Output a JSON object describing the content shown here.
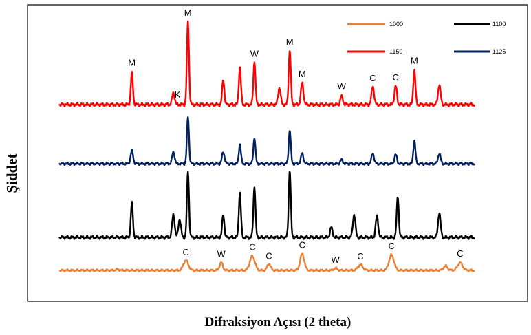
{
  "chart_data": {
    "type": "line",
    "xlabel": "Difraksiyon Açısı (2 theta)",
    "ylabel": "Şiddet",
    "x_tick_labels": false,
    "y_tick_labels": false,
    "grid": false,
    "legend_position": "top-right",
    "x": [
      0,
      0.02,
      0.04,
      0.06,
      0.08,
      0.1,
      0.12,
      0.14,
      0.16,
      0.18,
      0.2,
      0.22,
      0.24,
      0.26,
      0.28,
      0.3,
      0.32,
      0.34,
      0.36,
      0.38,
      0.4,
      0.42,
      0.44,
      0.46,
      0.48,
      0.5,
      0.52,
      0.54,
      0.56,
      0.58,
      0.6,
      0.62,
      0.64,
      0.66,
      0.68,
      0.7,
      0.72,
      0.74,
      0.76,
      0.78,
      0.8,
      0.82,
      0.84,
      0.86,
      0.88,
      0.9,
      0.92,
      0.94,
      0.96,
      0.98,
      1.0
    ],
    "series": [
      {
        "name": "1000",
        "color": "#ED7D31",
        "peaks": [
          {
            "x": 0.14,
            "h": 0.02,
            "w": 0.004
          },
          {
            "x": 0.305,
            "h": 0.18,
            "w": 0.006
          },
          {
            "x": 0.39,
            "h": 0.14,
            "w": 0.004
          },
          {
            "x": 0.465,
            "h": 0.26,
            "w": 0.006
          },
          {
            "x": 0.505,
            "h": 0.12,
            "w": 0.004
          },
          {
            "x": 0.585,
            "h": 0.3,
            "w": 0.005
          },
          {
            "x": 0.665,
            "h": 0.04,
            "w": 0.004
          },
          {
            "x": 0.725,
            "h": 0.1,
            "w": 0.006
          },
          {
            "x": 0.8,
            "h": 0.28,
            "w": 0.006
          },
          {
            "x": 0.93,
            "h": 0.08,
            "w": 0.005
          },
          {
            "x": 0.965,
            "h": 0.14,
            "w": 0.006
          }
        ]
      },
      {
        "name": "1100",
        "color": "#000000",
        "peaks": [
          {
            "x": 0.175,
            "h": 0.42,
            "w": 0.0025
          },
          {
            "x": 0.275,
            "h": 0.28,
            "w": 0.003
          },
          {
            "x": 0.29,
            "h": 0.22,
            "w": 0.003
          },
          {
            "x": 0.31,
            "h": 0.8,
            "w": 0.0025
          },
          {
            "x": 0.395,
            "h": 0.28,
            "w": 0.0025
          },
          {
            "x": 0.435,
            "h": 0.55,
            "w": 0.0025
          },
          {
            "x": 0.47,
            "h": 0.62,
            "w": 0.0025
          },
          {
            "x": 0.555,
            "h": 0.82,
            "w": 0.0025
          },
          {
            "x": 0.655,
            "h": 0.12,
            "w": 0.003
          },
          {
            "x": 0.71,
            "h": 0.28,
            "w": 0.003
          },
          {
            "x": 0.765,
            "h": 0.26,
            "w": 0.003
          },
          {
            "x": 0.815,
            "h": 0.5,
            "w": 0.0025
          },
          {
            "x": 0.915,
            "h": 0.3,
            "w": 0.003
          }
        ]
      },
      {
        "name": "1150",
        "color": "#FF0000",
        "peaks": [
          {
            "x": 0.175,
            "h": 0.38,
            "w": 0.0025
          },
          {
            "x": 0.275,
            "h": 0.14,
            "w": 0.003
          },
          {
            "x": 0.31,
            "h": 1.0,
            "w": 0.0025
          },
          {
            "x": 0.395,
            "h": 0.3,
            "w": 0.0025
          },
          {
            "x": 0.435,
            "h": 0.45,
            "w": 0.0025
          },
          {
            "x": 0.47,
            "h": 0.52,
            "w": 0.0025
          },
          {
            "x": 0.53,
            "h": 0.2,
            "w": 0.003
          },
          {
            "x": 0.555,
            "h": 0.66,
            "w": 0.0025
          },
          {
            "x": 0.585,
            "h": 0.26,
            "w": 0.003
          },
          {
            "x": 0.68,
            "h": 0.1,
            "w": 0.003
          },
          {
            "x": 0.755,
            "h": 0.22,
            "w": 0.003
          },
          {
            "x": 0.81,
            "h": 0.22,
            "w": 0.003
          },
          {
            "x": 0.855,
            "h": 0.42,
            "w": 0.0025
          },
          {
            "x": 0.915,
            "h": 0.24,
            "w": 0.003
          }
        ]
      },
      {
        "name": "1125",
        "color": "#002060",
        "peaks": [
          {
            "x": 0.175,
            "h": 0.2,
            "w": 0.003
          },
          {
            "x": 0.275,
            "h": 0.18,
            "w": 0.003
          },
          {
            "x": 0.31,
            "h": 0.72,
            "w": 0.0025
          },
          {
            "x": 0.395,
            "h": 0.18,
            "w": 0.003
          },
          {
            "x": 0.435,
            "h": 0.3,
            "w": 0.0025
          },
          {
            "x": 0.47,
            "h": 0.4,
            "w": 0.0025
          },
          {
            "x": 0.555,
            "h": 0.52,
            "w": 0.0025
          },
          {
            "x": 0.585,
            "h": 0.16,
            "w": 0.003
          },
          {
            "x": 0.68,
            "h": 0.06,
            "w": 0.003
          },
          {
            "x": 0.755,
            "h": 0.16,
            "w": 0.003
          },
          {
            "x": 0.81,
            "h": 0.14,
            "w": 0.003
          },
          {
            "x": 0.855,
            "h": 0.36,
            "w": 0.0025
          },
          {
            "x": 0.915,
            "h": 0.16,
            "w": 0.003
          }
        ]
      }
    ],
    "annotations": [
      {
        "text": "M",
        "series": "1150",
        "x": 0.175
      },
      {
        "text": "K",
        "series": "1150",
        "x": 0.285
      },
      {
        "text": "M",
        "series": "1150",
        "x": 0.31
      },
      {
        "text": "W",
        "series": "1150",
        "x": 0.47
      },
      {
        "text": "M",
        "series": "1150",
        "x": 0.555
      },
      {
        "text": "M",
        "series": "1150",
        "x": 0.585
      },
      {
        "text": "W",
        "series": "1150",
        "x": 0.68
      },
      {
        "text": "C",
        "series": "1150",
        "x": 0.755
      },
      {
        "text": "C",
        "series": "1150",
        "x": 0.81
      },
      {
        "text": "M",
        "series": "1150",
        "x": 0.855
      },
      {
        "text": "C",
        "series": "1000",
        "x": 0.305
      },
      {
        "text": "W",
        "series": "1000",
        "x": 0.39
      },
      {
        "text": "C",
        "series": "1000",
        "x": 0.465
      },
      {
        "text": "C",
        "series": "1000",
        "x": 0.505
      },
      {
        "text": "C",
        "series": "1000",
        "x": 0.585
      },
      {
        "text": "W",
        "series": "1000",
        "x": 0.665
      },
      {
        "text": "C",
        "series": "1000",
        "x": 0.725
      },
      {
        "text": "C",
        "series": "1000",
        "x": 0.8
      },
      {
        "text": "C",
        "series": "1000",
        "x": 0.965
      }
    ]
  }
}
